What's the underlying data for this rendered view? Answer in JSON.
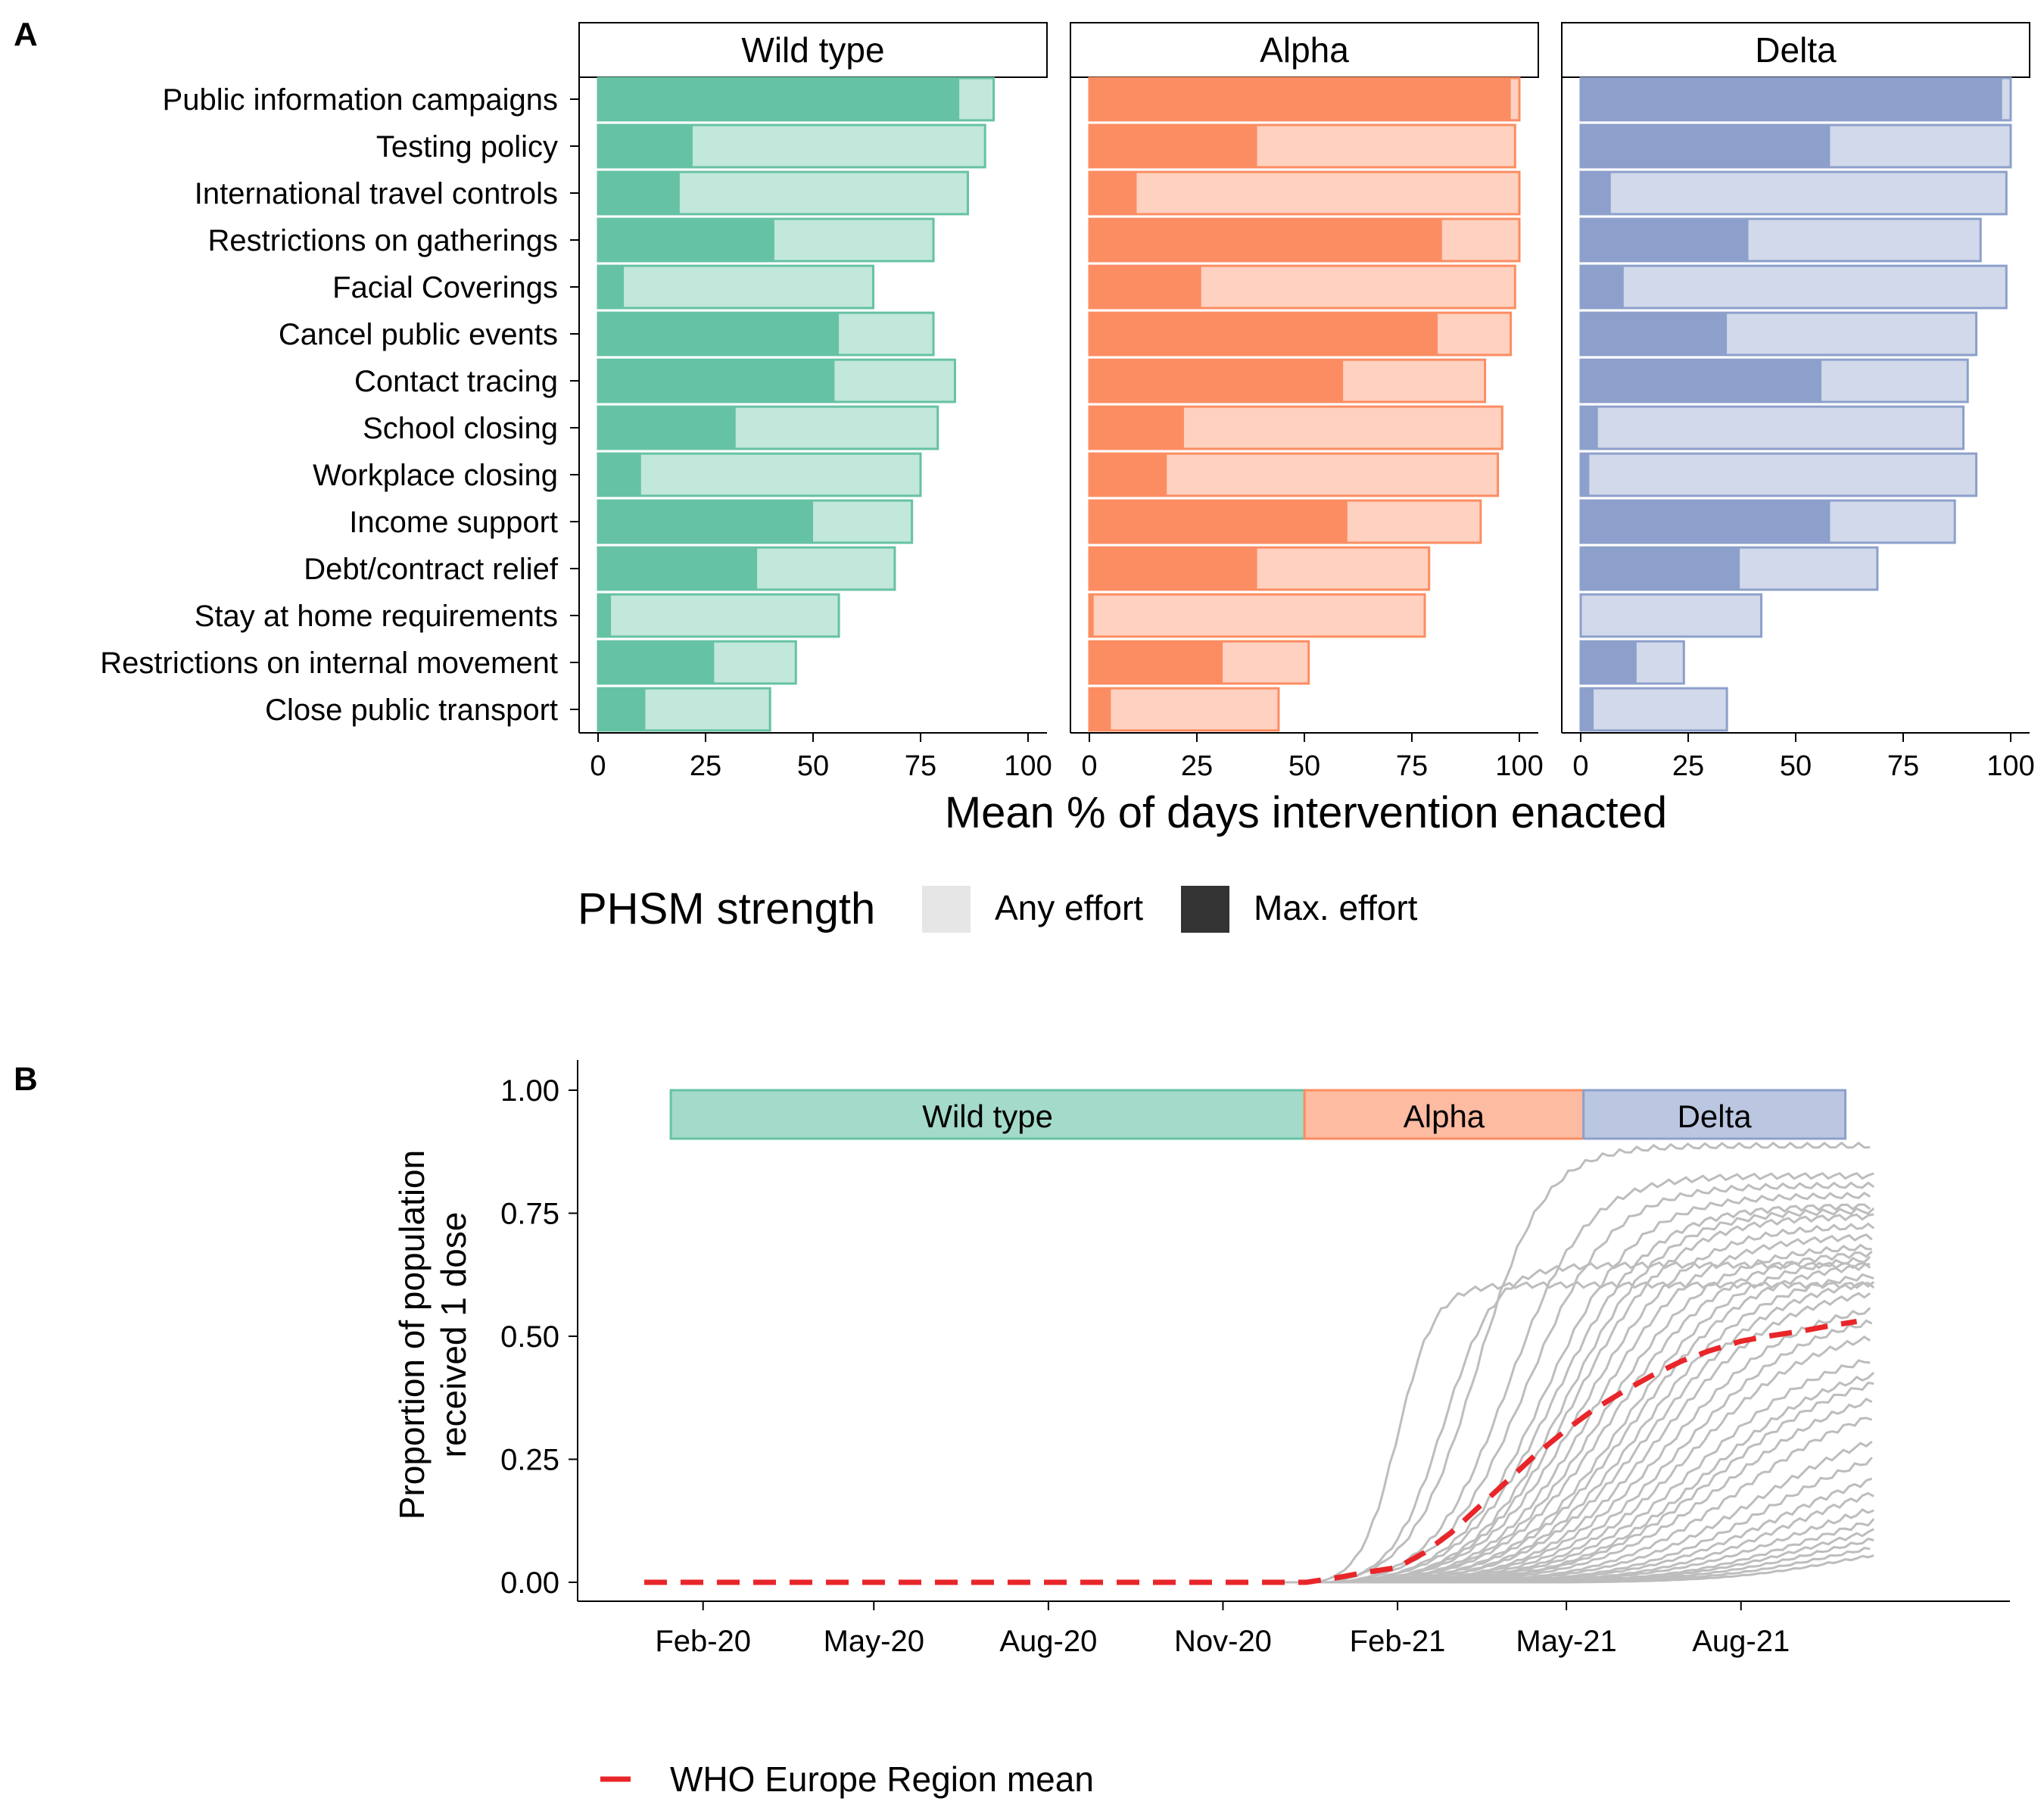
{
  "panels": {
    "a_label": "A",
    "b_label": "B"
  },
  "colors": {
    "wild_type": "#66c2a5",
    "alpha": "#fc8d62",
    "delta": "#8da0cb",
    "mean_line": "#e8262a",
    "country_lines": "#bdbdbd",
    "legend_any": "#e6e6e6",
    "legend_max": "#333333"
  },
  "chart_data": [
    {
      "type": "bar",
      "orientation": "horizontal",
      "facets": [
        "Wild type",
        "Alpha",
        "Delta"
      ],
      "categories": [
        "Public information campaigns",
        "Testing policy",
        "International travel controls",
        "Restrictions on gatherings",
        "Facial Coverings",
        "Cancel public events",
        "Contact tracing",
        "School closing",
        "Workplace closing",
        "Income support",
        "Debt/contract relief",
        "Stay at home requirements",
        "Restrictions on internal movement",
        "Close public transport"
      ],
      "series": [
        {
          "facet": "Wild type",
          "any_effort": [
            92,
            90,
            86,
            78,
            64,
            78,
            83,
            79,
            75,
            73,
            69,
            56,
            46,
            40
          ],
          "max_effort": [
            84,
            22,
            19,
            41,
            6,
            56,
            55,
            32,
            10,
            50,
            37,
            3,
            27,
            11
          ]
        },
        {
          "facet": "Alpha",
          "any_effort": [
            100,
            99,
            100,
            100,
            99,
            98,
            92,
            96,
            95,
            91,
            79,
            78,
            51,
            44
          ],
          "max_effort": [
            98,
            39,
            11,
            82,
            26,
            81,
            59,
            22,
            18,
            60,
            39,
            1,
            31,
            5
          ]
        },
        {
          "facet": "Delta",
          "any_effort": [
            100,
            100,
            99,
            93,
            99,
            92,
            90,
            89,
            92,
            87,
            69,
            42,
            24,
            34
          ],
          "max_effort": [
            98,
            58,
            7,
            39,
            10,
            34,
            56,
            4,
            2,
            58,
            37,
            0,
            13,
            3
          ]
        }
      ],
      "xlim": [
        0,
        100
      ],
      "xticks": [
        0,
        25,
        50,
        75,
        100
      ],
      "xlabel": "Mean % of days intervention enacted",
      "legend": {
        "title": "PHSM strength",
        "entries": [
          "Any effort",
          "Max. effort"
        ],
        "placement": "bottom"
      }
    },
    {
      "type": "line",
      "ylabel": "Proportion of population received 1 dose",
      "ylim": [
        0,
        1
      ],
      "yticks": [
        "0.00",
        "0.25",
        "0.50",
        "0.75",
        "1.00"
      ],
      "xlim": [
        "2020-01-01",
        "2021-11-30"
      ],
      "xticks": [
        "Feb-20",
        "May-20",
        "Aug-20",
        "Nov-20",
        "Feb-21",
        "May-21",
        "Aug-21"
      ],
      "variant_periods": [
        {
          "name": "Wild type",
          "start": "2020-01-15",
          "end": "2020-12-14"
        },
        {
          "name": "Alpha",
          "start": "2020-12-14",
          "end": "2021-05-10"
        },
        {
          "name": "Delta",
          "start": "2021-05-10",
          "end": "2021-09-25"
        }
      ],
      "mean_series": {
        "name": "WHO Europe Region mean",
        "x": [
          "2020-01-01",
          "2020-12-01",
          "2020-12-15",
          "2021-01-01",
          "2021-01-15",
          "2021-02-01",
          "2021-02-15",
          "2021-03-01",
          "2021-03-15",
          "2021-04-01",
          "2021-04-15",
          "2021-05-01",
          "2021-05-15",
          "2021-06-01",
          "2021-06-15",
          "2021-07-01",
          "2021-07-15",
          "2021-08-01",
          "2021-08-15",
          "2021-09-01",
          "2021-09-15",
          "2021-10-01"
        ],
        "y": [
          0.0,
          0.0,
          0.0,
          0.01,
          0.02,
          0.03,
          0.06,
          0.1,
          0.15,
          0.21,
          0.26,
          0.31,
          0.35,
          0.39,
          0.42,
          0.45,
          0.47,
          0.49,
          0.5,
          0.51,
          0.52,
          0.53
        ]
      },
      "country_series": [
        {
          "start": "2020-12-20",
          "x50": "2021-02-01",
          "final": 0.6
        },
        {
          "start": "2020-12-27",
          "x50": "2021-02-25",
          "final": 0.64
        },
        {
          "start": "2020-12-27",
          "x50": "2021-03-15",
          "final": 0.88
        },
        {
          "start": "2021-01-01",
          "x50": "2021-04-01",
          "final": 0.82
        },
        {
          "start": "2021-01-01",
          "x50": "2021-04-10",
          "final": 0.8
        },
        {
          "start": "2021-01-05",
          "x50": "2021-04-20",
          "final": 0.78
        },
        {
          "start": "2021-01-05",
          "x50": "2021-04-25",
          "final": 0.76
        },
        {
          "start": "2021-01-10",
          "x50": "2021-05-01",
          "final": 0.75
        },
        {
          "start": "2021-01-10",
          "x50": "2021-05-05",
          "final": 0.74
        },
        {
          "start": "2021-01-10",
          "x50": "2021-05-10",
          "final": 0.72
        },
        {
          "start": "2021-01-15",
          "x50": "2021-05-15",
          "final": 0.7
        },
        {
          "start": "2021-01-15",
          "x50": "2021-05-20",
          "final": 0.68
        },
        {
          "start": "2021-01-15",
          "x50": "2021-05-25",
          "final": 0.67
        },
        {
          "start": "2021-01-20",
          "x50": "2021-06-01",
          "final": 0.66
        },
        {
          "start": "2021-01-20",
          "x50": "2021-06-05",
          "final": 0.65
        },
        {
          "start": "2021-01-25",
          "x50": "2021-06-10",
          "final": 0.63
        },
        {
          "start": "2021-01-25",
          "x50": "2021-06-15",
          "final": 0.62
        },
        {
          "start": "2021-02-01",
          "x50": "2021-06-20",
          "final": 0.6
        },
        {
          "start": "2021-02-01",
          "x50": "2021-06-25",
          "final": 0.57
        },
        {
          "start": "2021-02-05",
          "x50": "2021-07-01",
          "final": 0.55
        },
        {
          "start": "2021-02-10",
          "x50": "2021-07-05",
          "final": 0.52
        },
        {
          "start": "2021-02-10",
          "x50": "2021-07-10",
          "final": 0.48
        },
        {
          "start": "2021-02-15",
          "x50": "2021-07-15",
          "final": 0.45
        },
        {
          "start": "2021-02-15",
          "x50": "2021-07-20",
          "final": 0.44
        },
        {
          "start": "2021-02-20",
          "x50": "2021-07-25",
          "final": 0.41
        },
        {
          "start": "2021-03-01",
          "x50": "2021-08-01",
          "final": 0.38
        },
        {
          "start": "2021-03-01",
          "x50": "2021-08-10",
          "final": 0.34
        },
        {
          "start": "2021-03-10",
          "x50": "2021-08-15",
          "final": 0.3
        },
        {
          "start": "2021-03-10",
          "x50": "2021-08-20",
          "final": 0.26
        },
        {
          "start": "2021-03-20",
          "x50": "2021-08-25",
          "final": 0.23
        },
        {
          "start": "2021-03-20",
          "x50": "2021-09-01",
          "final": 0.2
        },
        {
          "start": "2021-04-01",
          "x50": "2021-09-05",
          "final": 0.17
        },
        {
          "start": "2021-04-01",
          "x50": "2021-09-10",
          "final": 0.15
        },
        {
          "start": "2021-04-10",
          "x50": "2021-09-15",
          "final": 0.13
        },
        {
          "start": "2021-04-20",
          "x50": "2021-09-20",
          "final": 0.11
        },
        {
          "start": "2021-05-01",
          "x50": "2021-09-25",
          "final": 0.09
        }
      ],
      "legend": {
        "entries": [
          "WHO Europe Region mean"
        ],
        "placement": "bottom-left"
      }
    }
  ]
}
